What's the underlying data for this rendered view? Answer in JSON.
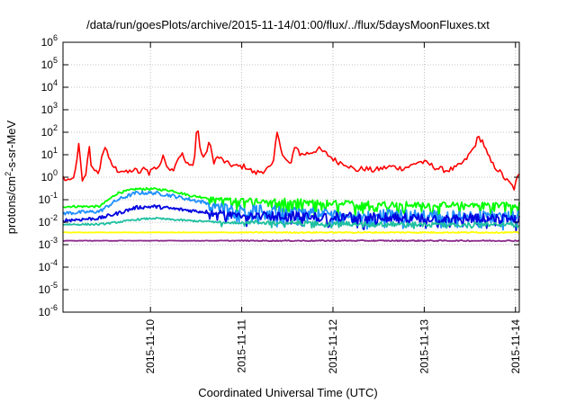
{
  "chart_data": {
    "type": "line",
    "title": "/data/run/goesPlots/archive/2015-11-14/01:00/flux/../flux/5daysMoonFluxes.txt",
    "xlabel": "Coordinated Universal Time (UTC)",
    "ylabel_main": "protons/cm",
    "ylabel_sup": "2",
    "ylabel_rest": "-s-sr-MeV",
    "yscale": "log",
    "ylim": [
      1e-06,
      1000000.0
    ],
    "ytick_exponents": [
      -6,
      -5,
      -4,
      -3,
      -2,
      -1,
      0,
      1,
      2,
      3,
      4,
      5,
      6
    ],
    "xlim": [
      "2015-11-09 01:00",
      "2015-11-14 01:00"
    ],
    "xticks": [
      "2015-11-10",
      "2015-11-11",
      "2015-11-12",
      "2015-11-13",
      "2015-11-14"
    ],
    "grid": true,
    "legend": "none",
    "series": [
      {
        "color": "#ff0000",
        "kind": "wave",
        "points": [
          [
            0.0,
            1.0
          ],
          [
            0.05,
            0.6
          ],
          [
            0.1,
            0.8
          ],
          [
            0.14,
            2.0
          ],
          [
            0.18,
            45
          ],
          [
            0.2,
            1.0
          ],
          [
            0.22,
            0.6
          ],
          [
            0.25,
            1.5
          ],
          [
            0.29,
            30
          ],
          [
            0.31,
            3.0
          ],
          [
            0.35,
            1.5
          ],
          [
            0.4,
            2.0
          ],
          [
            0.43,
            10
          ],
          [
            0.47,
            30
          ],
          [
            0.5,
            6
          ],
          [
            0.55,
            3.0
          ],
          [
            0.6,
            2.0
          ],
          [
            0.65,
            2.0
          ],
          [
            0.7,
            1.5
          ],
          [
            0.75,
            2.0
          ],
          [
            0.8,
            2.0
          ],
          [
            0.85,
            1.5
          ],
          [
            0.9,
            3.0
          ],
          [
            0.94,
            1.5
          ],
          [
            0.98,
            2.5
          ],
          [
            1.0,
            2.5
          ],
          [
            1.05,
            3.0
          ],
          [
            1.1,
            8
          ],
          [
            1.15,
            3.0
          ],
          [
            1.2,
            2.0
          ],
          [
            1.25,
            6
          ],
          [
            1.3,
            12
          ],
          [
            1.35,
            4
          ],
          [
            1.4,
            3.0
          ],
          [
            1.44,
            6
          ],
          [
            1.47,
            300
          ],
          [
            1.5,
            20
          ],
          [
            1.55,
            6
          ],
          [
            1.6,
            40
          ],
          [
            1.65,
            5
          ],
          [
            1.7,
            8
          ],
          [
            1.8,
            4
          ],
          [
            1.9,
            3
          ],
          [
            2.0,
            3
          ],
          [
            2.1,
            1.5
          ],
          [
            2.2,
            2.0
          ],
          [
            2.3,
            3.0
          ],
          [
            2.35,
            150
          ],
          [
            2.4,
            10
          ],
          [
            2.45,
            5
          ],
          [
            2.5,
            4
          ],
          [
            2.55,
            30
          ],
          [
            2.6,
            10
          ],
          [
            2.7,
            12
          ],
          [
            2.8,
            18
          ],
          [
            2.9,
            10
          ],
          [
            3.0,
            5
          ],
          [
            3.1,
            4
          ],
          [
            3.2,
            2.0
          ],
          [
            3.3,
            2.5
          ],
          [
            3.4,
            2.0
          ],
          [
            3.5,
            2.5
          ],
          [
            3.6,
            3.0
          ],
          [
            3.7,
            2.5
          ],
          [
            3.8,
            3.0
          ],
          [
            3.9,
            5.0
          ],
          [
            4.0,
            4.0
          ],
          [
            4.1,
            2.5
          ],
          [
            4.2,
            2.0
          ],
          [
            4.3,
            2.5
          ],
          [
            4.4,
            5
          ],
          [
            4.5,
            20
          ],
          [
            4.55,
            60
          ],
          [
            4.6,
            40
          ],
          [
            4.65,
            10
          ],
          [
            4.7,
            4
          ],
          [
            4.75,
            2.5
          ],
          [
            4.8,
            1.5
          ],
          [
            4.85,
            0.8
          ],
          [
            4.9,
            0.5
          ],
          [
            4.95,
            0.3
          ],
          [
            4.97,
            0.8
          ],
          [
            5.0,
            1.2
          ]
        ]
      },
      {
        "color": "#00ff00",
        "kind": "noise",
        "points": [
          [
            0.0,
            0.05
          ],
          [
            0.4,
            0.05
          ],
          [
            0.6,
            0.2
          ],
          [
            0.8,
            0.3
          ],
          [
            1.0,
            0.3
          ],
          [
            1.2,
            0.25
          ],
          [
            1.4,
            0.15
          ],
          [
            1.6,
            0.12
          ],
          [
            1.8,
            0.1
          ],
          [
            2.0,
            0.1
          ],
          [
            3.0,
            0.07
          ],
          [
            4.0,
            0.06
          ],
          [
            5.0,
            0.06
          ]
        ],
        "noise": [
          0.25,
          0.6
        ]
      },
      {
        "color": "#1e90ff",
        "kind": "noise",
        "points": [
          [
            0.0,
            0.025
          ],
          [
            0.4,
            0.03
          ],
          [
            0.6,
            0.1
          ],
          [
            0.8,
            0.2
          ],
          [
            1.0,
            0.2
          ],
          [
            1.2,
            0.15
          ],
          [
            1.4,
            0.1
          ],
          [
            1.6,
            0.07
          ],
          [
            1.8,
            0.05
          ],
          [
            2.0,
            0.04
          ],
          [
            3.0,
            0.025
          ],
          [
            4.0,
            0.022
          ],
          [
            5.0,
            0.02
          ]
        ],
        "noise": [
          0.4,
          0.6
        ]
      },
      {
        "color": "#0000e0",
        "kind": "noise",
        "points": [
          [
            0.0,
            0.012
          ],
          [
            0.4,
            0.015
          ],
          [
            0.6,
            0.025
          ],
          [
            0.8,
            0.045
          ],
          [
            1.0,
            0.05
          ],
          [
            1.2,
            0.04
          ],
          [
            1.5,
            0.03
          ],
          [
            1.8,
            0.025
          ],
          [
            2.0,
            0.02
          ],
          [
            3.0,
            0.018
          ],
          [
            4.0,
            0.015
          ],
          [
            5.0,
            0.015
          ]
        ],
        "noise": [
          0.4,
          0.4
        ]
      },
      {
        "color": "#20c0a0",
        "kind": "noise",
        "points": [
          [
            0.0,
            0.008
          ],
          [
            0.4,
            0.008
          ],
          [
            0.6,
            0.01
          ],
          [
            0.8,
            0.013
          ],
          [
            1.0,
            0.015
          ],
          [
            1.2,
            0.013
          ],
          [
            1.5,
            0.011
          ],
          [
            1.8,
            0.01
          ],
          [
            2.0,
            0.01
          ],
          [
            3.0,
            0.009
          ],
          [
            4.0,
            0.008
          ],
          [
            5.0,
            0.008
          ]
        ],
        "noise": [
          0.2,
          0.15
        ]
      },
      {
        "color": "#ffff00",
        "kind": "noise",
        "points": [
          [
            0.0,
            0.0035
          ],
          [
            5.0,
            0.0035
          ]
        ],
        "noise": [
          0.05,
          0.0
        ]
      },
      {
        "color": "#8b2a8b",
        "kind": "noise",
        "points": [
          [
            0.0,
            0.0015
          ],
          [
            5.0,
            0.0015
          ]
        ],
        "noise": [
          0.05,
          0.0
        ]
      }
    ]
  }
}
